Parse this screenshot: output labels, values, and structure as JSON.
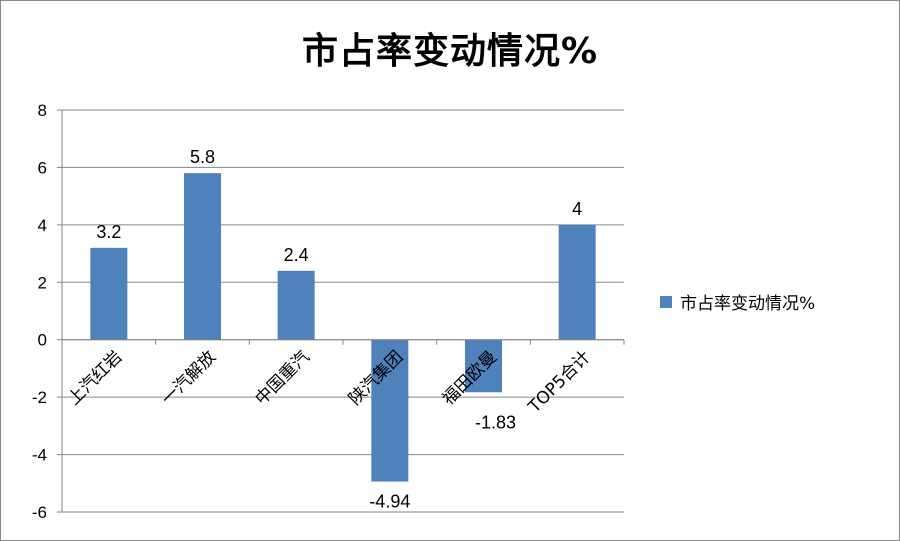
{
  "colors": {
    "bar": "#4f81bd",
    "grid": "#868686",
    "axis": "#868686"
  },
  "chart_data": {
    "type": "bar",
    "title": "市占率变动情况%",
    "categories": [
      "上汽红岩",
      "一汽解放",
      "中国重汽",
      "陕汽集团",
      "福田欧曼",
      "TOP5合计"
    ],
    "series": [
      {
        "name": "市占率变动情况%",
        "values": [
          3.2,
          5.8,
          2.4,
          -4.94,
          -1.83,
          4
        ]
      }
    ],
    "data_labels": [
      "3.2",
      "5.8",
      "2.4",
      "-4.94",
      "-1.83",
      "4"
    ],
    "ylim": [
      -6,
      8
    ],
    "yticks": [
      -6,
      -4,
      -2,
      0,
      2,
      4,
      6,
      8
    ],
    "grid": true,
    "legend_position": "right"
  }
}
